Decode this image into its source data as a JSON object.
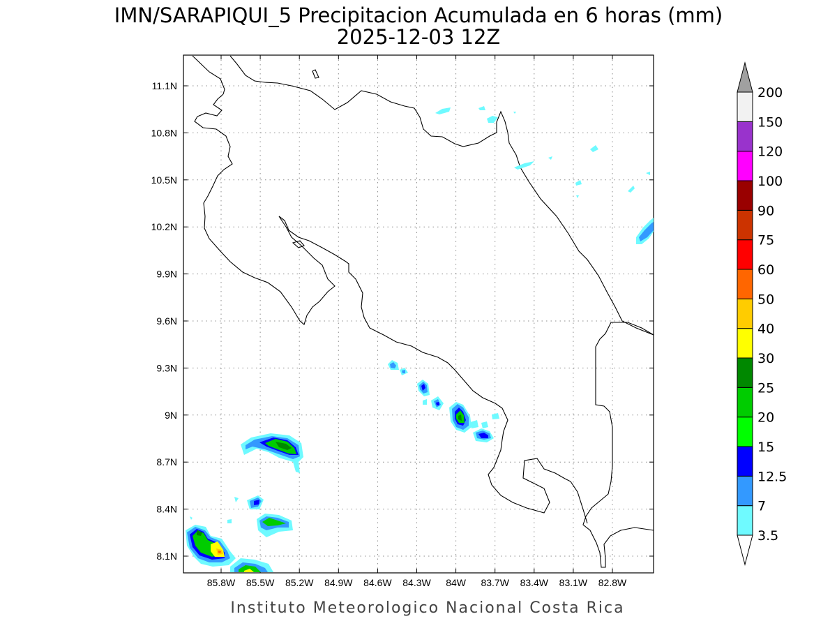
{
  "title": {
    "line1": "IMN/SARAPIQUI_5 Precipitacion Acumulada en 6 horas (mm)",
    "line2": "2025-12-03 12Z"
  },
  "footer": "Instituto Meteorologico Nacional Costa Rica",
  "map": {
    "lat_range": [
      8.0,
      11.3
    ],
    "lon_range": [
      -86.0,
      -83.0
    ],
    "grid": "dotted",
    "lat_ticks": [
      {
        "value": 11.1,
        "label": "11.1N"
      },
      {
        "value": 10.8,
        "label": "10.8N"
      },
      {
        "value": 10.5,
        "label": "10.5N"
      },
      {
        "value": 10.2,
        "label": "10.2N"
      },
      {
        "value": 9.9,
        "label": "9.9N"
      },
      {
        "value": 9.6,
        "label": "9.6N"
      },
      {
        "value": 9.3,
        "label": "9.3N"
      },
      {
        "value": 9.0,
        "label": "9N"
      },
      {
        "value": 8.7,
        "label": "8.7N"
      },
      {
        "value": 8.4,
        "label": "8.4N"
      },
      {
        "value": 8.1,
        "label": "8.1N"
      }
    ],
    "lon_ticks": [
      {
        "value": -85.8,
        "label": "85.8W"
      },
      {
        "value": -85.5,
        "label": "85.5W"
      },
      {
        "value": -85.2,
        "label": "85.2W"
      },
      {
        "value": -84.9,
        "label": "84.9W"
      },
      {
        "value": -84.6,
        "label": "84.6W"
      },
      {
        "value": -84.3,
        "label": "84.3W"
      },
      {
        "value": -84.0,
        "label": "84W"
      },
      {
        "value": -83.7,
        "label": "83.7W"
      },
      {
        "value": -83.4,
        "label": "83.4W"
      },
      {
        "value": -83.1,
        "label": "83.1W"
      },
      {
        "value": -82.8,
        "label": "82.8W"
      }
    ]
  },
  "colorbar": {
    "levels": [
      "3.5",
      "7",
      "12.5",
      "15",
      "20",
      "25",
      "30",
      "40",
      "50",
      "60",
      "75",
      "90",
      "100",
      "120",
      "150",
      "200"
    ],
    "colors": [
      "#6ffaff",
      "#3399ff",
      "#0000ff",
      "#00ff00",
      "#00cc00",
      "#008800",
      "#ffff00",
      "#ffcc00",
      "#ff6600",
      "#ff0000",
      "#cc3300",
      "#990000",
      "#ff00ff",
      "#9933cc",
      "#f2f2f2",
      "#a0a0a0"
    ],
    "under_color": "#ffffff",
    "over_color": "#a0a0a0"
  }
}
